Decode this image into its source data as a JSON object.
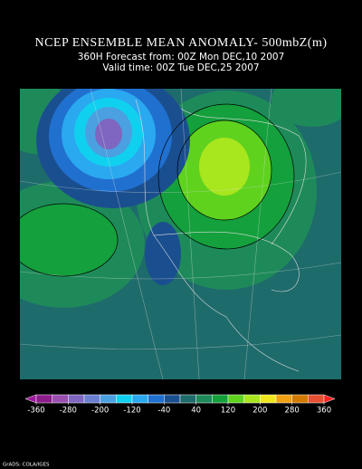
{
  "header": {
    "title": "NCEP ENSEMBLE MEAN ANOMALY- 500mbZ(m)",
    "forecast": "360H Forecast from: 00Z Mon DEC,10 2007",
    "valid": "Valid time: 00Z Tue DEC,25 2007"
  },
  "colorbar": {
    "levels": [
      -360,
      -280,
      -200,
      -120,
      -40,
      40,
      120,
      200,
      280,
      360
    ],
    "step": 40,
    "colors": [
      "#9e1a9e",
      "#8b1e8b",
      "#9b4fb0",
      "#7f66c0",
      "#6a7fd0",
      "#4aa0e0",
      "#10d0f0",
      "#2aa8f0",
      "#2070d0",
      "#1a4f8f",
      "#1e6b6b",
      "#1e8a5a",
      "#14a03c",
      "#5fd21e",
      "#a8e61e",
      "#f0e61e",
      "#f0a010",
      "#d27a00",
      "#e65032",
      "#ff2020"
    ]
  },
  "footer": "GrADS: COLA/IGES"
}
